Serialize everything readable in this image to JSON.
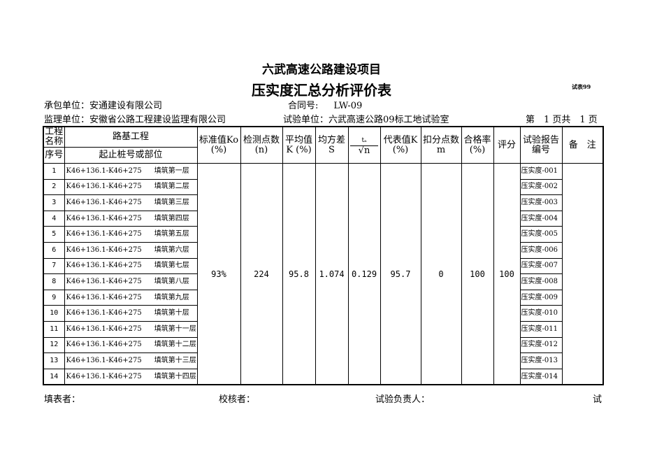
{
  "title": "六武高速公路建设项目",
  "subtitle": "压实度汇总分析评价表",
  "form_no": "试表99",
  "contractor_label": "承包单位：",
  "contractor": "安通建设有限公司",
  "contract_no_label": "合同号:",
  "contract_no": "LW-09",
  "supervisor_label": "监理单位：",
  "supervisor": "安徽省公路工程建设监理有限公司",
  "lab_label": "试验单位：",
  "lab": "六武高速公路09标工地试验室",
  "page": "第　1 页共　1 页",
  "header": {
    "project_name_label": "工程名称",
    "project_name": "路基工程",
    "seq": "序号",
    "location": "起止桩号或部位",
    "k0": "标准值Ko",
    "k0_unit": "(%)",
    "n": "检测点数",
    "n_unit": "(n)",
    "avg": "平均值",
    "avg_unit": "K (%)",
    "s": "均方差",
    "s_unit": "S",
    "ta": "tₐ",
    "sqrt_n": "√n",
    "rep_k": "代表值K",
    "rep_k_unit": "(%)",
    "deduct": "扣分点数",
    "deduct_unit": "m",
    "pass": "合格率",
    "pass_unit": "(%)",
    "score": "评分",
    "report": "试验报告",
    "report2": "编号",
    "remark": "备　注"
  },
  "summary": {
    "k0": "93%",
    "n": "224",
    "avg": "95.8",
    "s": "1.074",
    "ta_sqrt_n": "0.129",
    "rep_k": "95.7",
    "deduct": "0",
    "pass": "100",
    "score": "100"
  },
  "rows": [
    {
      "no": "1",
      "station": "K46+136.1-K46+275",
      "layer": "填筑第一层",
      "report": "压实度-001"
    },
    {
      "no": "2",
      "station": "K46+136.1-K46+275",
      "layer": "填筑第二层",
      "report": "压实度-002"
    },
    {
      "no": "3",
      "station": "K46+136.1-K46+275",
      "layer": "填筑第三层",
      "report": "压实度-003"
    },
    {
      "no": "4",
      "station": "K46+136.1-K46+275",
      "layer": "填筑第四层",
      "report": "压实度-004"
    },
    {
      "no": "5",
      "station": "K46+136.1-K46+275",
      "layer": "填筑第五层",
      "report": "压实度-005"
    },
    {
      "no": "6",
      "station": "K46+136.1-K46+275",
      "layer": "填筑第六层",
      "report": "压实度-006"
    },
    {
      "no": "7",
      "station": "K46+136.1-K46+275",
      "layer": "填筑第七层",
      "report": "压实度-007"
    },
    {
      "no": "8",
      "station": "K46+136.1-K46+275",
      "layer": "填筑第八层",
      "report": "压实度-008"
    },
    {
      "no": "9",
      "station": "K46+136.1-K46+275",
      "layer": "填筑第九层",
      "report": "压实度-009"
    },
    {
      "no": "10",
      "station": "K46+136.1-K46+275",
      "layer": "填筑第十层",
      "report": "压实度-010"
    },
    {
      "no": "11",
      "station": "K46+136.1-K46+275",
      "layer": "填筑第十一层",
      "report": "压实度-011"
    },
    {
      "no": "12",
      "station": "K46+136.1-K46+275",
      "layer": "填筑第十二层",
      "report": "压实度-012"
    },
    {
      "no": "13",
      "station": "K46+136.1-K46+275",
      "layer": "填筑第十三层",
      "report": "压实度-013"
    },
    {
      "no": "14",
      "station": "K46+136.1-K46+275",
      "layer": "填筑第十四层",
      "report": "压实度-014"
    }
  ],
  "footer": {
    "filler": "填表者：",
    "checker": "校核者：",
    "lab_head": "试验负责人：",
    "tail": "试"
  }
}
